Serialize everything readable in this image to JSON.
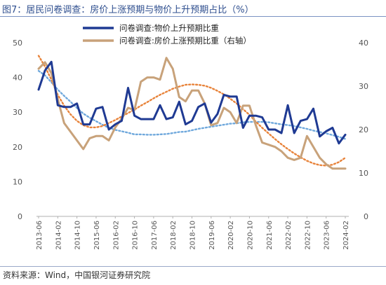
{
  "header": {
    "title": "图7：居民问卷调查：房价上涨预期与物价上升预期占比（%）"
  },
  "footer": {
    "source": "资料来源：Wind，中国银河证券研究院"
  },
  "colors": {
    "series1": "#1f3a93",
    "series2": "#c8a27a",
    "trend1": "#6fa8dc",
    "trend2": "#e8833a"
  },
  "chart_data": {
    "type": "line",
    "title": "",
    "x_tick_labels": [
      "2013-06",
      "2014-02",
      "2014-10",
      "2015-06",
      "2016-02",
      "2016-10",
      "2017-06",
      "2018-02",
      "2018-10",
      "2019-06",
      "2020-02",
      "2020-10",
      "2021-06",
      "2022-02",
      "2022-10",
      "2023-06",
      "2024-02"
    ],
    "ylim_left": [
      0,
      50
    ],
    "ylim_right": [
      0,
      40
    ],
    "left_ticks": [
      0,
      10,
      20,
      30,
      40,
      50
    ],
    "right_ticks": [
      0,
      10,
      20,
      30,
      40
    ],
    "legend_position": "top-center",
    "grid": false,
    "series": [
      {
        "name": "问卷调查:物价上升预期比重",
        "axis": "left",
        "style": "solid",
        "values": [
          36.5,
          42,
          44.5,
          32,
          31.5,
          31.5,
          32.5,
          26.5,
          26.5,
          31,
          31.5,
          25,
          26.5,
          27.5,
          37,
          29,
          28,
          28,
          28,
          32,
          28,
          28.5,
          33,
          26.5,
          27.5,
          31.5,
          32.5,
          27,
          29.5,
          35,
          34.5,
          34.5,
          25.5,
          29,
          29,
          28.5,
          25,
          25,
          24,
          32,
          24,
          27.5,
          28,
          31,
          23,
          24.5,
          25.5,
          21,
          23.5
        ]
      },
      {
        "name": "问卷调查:房价上涨预期比重（右轴）",
        "axis": "right",
        "style": "solid",
        "values": [
          34,
          35.5,
          33,
          27,
          21.5,
          19.5,
          17.5,
          15.5,
          18,
          18.5,
          18.5,
          17.5,
          20.5,
          22.5,
          25,
          24.5,
          31,
          32,
          32,
          31.5,
          36.5,
          34,
          27.5,
          26.5,
          29,
          29,
          26,
          21,
          21.5,
          25,
          24,
          21.5,
          25.5,
          25.5,
          21,
          17,
          16.5,
          16,
          15,
          13.5,
          13,
          13.5,
          18.5,
          16,
          13.5,
          12,
          11,
          11,
          11
        ]
      },
      {
        "name": "",
        "axis": "left",
        "style": "dotted",
        "values": [
          41.9,
          40.6,
          38.6,
          36.5,
          34.7,
          33,
          31.2,
          29.6,
          28.4,
          27.4,
          26.4,
          25.5,
          24.9,
          24.5,
          24.1,
          23.6,
          23.6,
          23.5,
          23.5,
          23.6,
          23.7,
          24,
          24.3,
          24.4,
          24.8,
          25.2,
          25.5,
          25.8,
          26.1,
          26.4,
          26.7,
          26.8,
          27.1,
          27.2,
          27.2,
          27.2,
          27.1,
          26.8,
          26.5,
          26.3,
          26,
          25.6,
          25.2,
          24.7,
          24.3,
          23.9,
          23.4,
          22.9,
          22.3
        ]
      },
      {
        "name": "",
        "axis": "right",
        "style": "dotted",
        "values": [
          37,
          34.5,
          31.5,
          28,
          25.5,
          23.5,
          22,
          21,
          20.5,
          20.5,
          20.8,
          21.5,
          22.2,
          23,
          23.8,
          24.6,
          25.5,
          26.3,
          27.2,
          28,
          28.7,
          29.4,
          29.9,
          30.3,
          30.4,
          30.3,
          30.1,
          29.6,
          28.9,
          28.1,
          27.1,
          26,
          24.7,
          23.4,
          21.8,
          20.4,
          19.1,
          17.8,
          16.6,
          15.5,
          14.5,
          13.6,
          12.8,
          12.2,
          11.8,
          11.7,
          11.9,
          12.5,
          13.5
        ]
      }
    ]
  }
}
